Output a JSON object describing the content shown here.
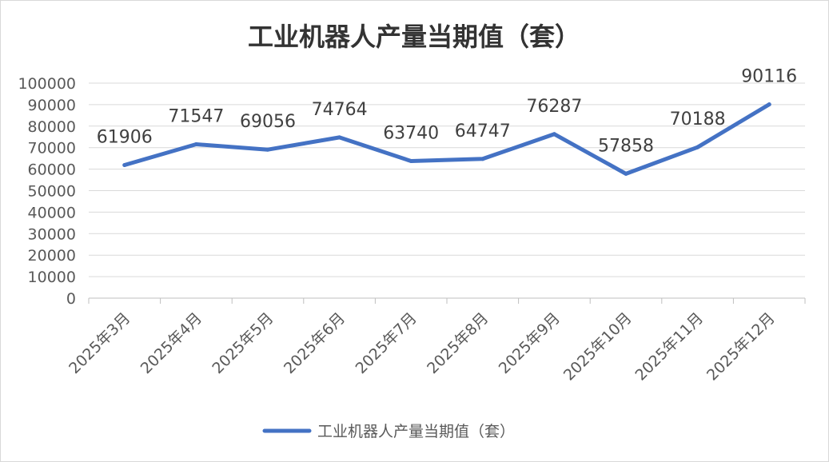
{
  "chart_data": {
    "type": "line",
    "title": "工业机器人产量当期值（套）",
    "categories": [
      "2025年3月",
      "2025年4月",
      "2025年5月",
      "2025年6月",
      "2025年7月",
      "2025年8月",
      "2025年9月",
      "2025年10月",
      "2025年11月",
      "2025年12月"
    ],
    "series": [
      {
        "name": "工业机器人产量当期值（套）",
        "values": [
          61906,
          71547,
          69056,
          74764,
          63740,
          64747,
          76287,
          57858,
          70188,
          90116
        ],
        "color": "#4472C4"
      }
    ],
    "data_labels": [
      "61906",
      "71547",
      "69056",
      "74764",
      "63740",
      "64747",
      "76287",
      "57858",
      "70188",
      "90116"
    ],
    "ylim": [
      0,
      100000
    ],
    "yticks": [
      "0",
      "10000",
      "20000",
      "30000",
      "40000",
      "50000",
      "60000",
      "70000",
      "80000",
      "90000",
      "100000"
    ],
    "grid": true,
    "legend_position": "bottom"
  }
}
